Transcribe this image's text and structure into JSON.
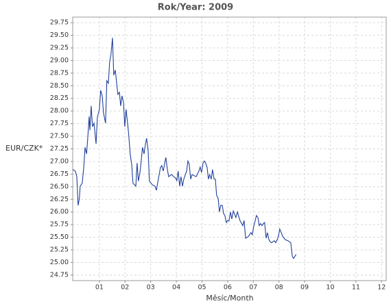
{
  "chart_data": {
    "type": "line",
    "title": "Rok/Year: 2009",
    "x_label": "Měsíc/Month",
    "y_label": "EUR/CZK*",
    "color": "#1f3f9a",
    "grid": true,
    "xlim": [
      -0.04,
      12.18
    ],
    "ylim": [
      24.64,
      29.86
    ],
    "xticks": [
      {
        "value": 1,
        "label": "01"
      },
      {
        "value": 2,
        "label": "02"
      },
      {
        "value": 3,
        "label": "03"
      },
      {
        "value": 4,
        "label": "04"
      },
      {
        "value": 5,
        "label": "05"
      },
      {
        "value": 6,
        "label": "06"
      },
      {
        "value": 7,
        "label": "07"
      },
      {
        "value": 8,
        "label": "08"
      },
      {
        "value": 9,
        "label": "09"
      },
      {
        "value": 10,
        "label": "10"
      },
      {
        "value": 11,
        "label": "11"
      },
      {
        "value": 12,
        "label": "12"
      }
    ],
    "yticks": [
      24.75,
      {
        "value": 25,
        "label": "25.00"
      },
      25.25,
      {
        "value": 25.5,
        "label": "25.50"
      },
      25.75,
      {
        "value": 26,
        "label": "26.00"
      },
      26.25,
      {
        "value": 26.5,
        "label": "26.50"
      },
      26.75,
      {
        "value": 27,
        "label": "27.00"
      },
      27.25,
      {
        "value": 27.5,
        "label": "27.50"
      },
      27.75,
      {
        "value": 28,
        "label": "28.00"
      },
      28.25,
      {
        "value": 28.5,
        "label": "28.50"
      },
      28.75,
      {
        "value": 29,
        "label": "29.00"
      },
      29.25,
      {
        "value": 29.5,
        "label": "29.50"
      },
      29.75
    ],
    "x": [
      -0.04,
      0.06,
      0.12,
      0.17,
      0.22,
      0.25,
      0.33,
      0.39,
      0.44,
      0.5,
      0.55,
      0.6,
      0.63,
      0.68,
      0.73,
      0.79,
      0.87,
      0.92,
      1.0,
      1.05,
      1.11,
      1.16,
      1.24,
      1.29,
      1.35,
      1.4,
      1.45,
      1.51,
      1.56,
      1.62,
      1.67,
      1.72,
      1.78,
      1.83,
      1.88,
      1.94,
      1.99,
      2.04,
      2.1,
      2.15,
      2.2,
      2.26,
      2.31,
      2.42,
      2.47,
      2.52,
      2.58,
      2.63,
      2.68,
      2.74,
      2.79,
      2.84,
      2.9,
      2.95,
      3.06,
      3.17,
      3.22,
      3.27,
      3.38,
      3.43,
      3.49,
      3.54,
      3.59,
      3.65,
      3.7,
      3.81,
      3.97,
      4.02,
      4.07,
      4.13,
      4.18,
      4.24,
      4.29,
      4.4,
      4.45,
      4.5,
      4.56,
      4.61,
      4.77,
      4.88,
      4.93,
      4.98,
      5.04,
      5.09,
      5.14,
      5.2,
      5.25,
      5.3,
      5.36,
      5.41,
      5.47,
      5.52,
      5.57,
      5.63,
      5.68,
      5.73,
      5.79,
      5.84,
      5.89,
      5.95,
      6.0,
      6.05,
      6.11,
      6.16,
      6.22,
      6.32,
      6.38,
      6.48,
      6.59,
      6.64,
      6.7,
      6.8,
      6.91,
      6.96,
      7.02,
      7.07,
      7.12,
      7.18,
      7.23,
      7.28,
      7.34,
      7.39,
      7.44,
      7.5,
      7.55,
      7.61,
      7.66,
      7.71,
      7.82,
      7.87,
      7.93,
      7.98,
      8.03,
      8.09,
      8.14,
      8.25,
      8.35,
      8.46,
      8.52,
      8.57,
      8.62,
      8.67
    ],
    "values": [
      26.84,
      26.81,
      26.7,
      26.13,
      26.27,
      26.51,
      26.57,
      26.88,
      27.28,
      27.15,
      27.49,
      27.89,
      27.62,
      28.1,
      27.69,
      27.76,
      27.35,
      27.87,
      28.03,
      28.41,
      28.3,
      27.96,
      27.76,
      28.6,
      28.55,
      28.98,
      29.11,
      29.45,
      28.71,
      28.81,
      28.57,
      28.33,
      28.37,
      28.1,
      28.3,
      28.17,
      27.69,
      28.03,
      27.76,
      27.49,
      27.15,
      26.94,
      26.57,
      26.51,
      26.97,
      26.61,
      26.78,
      27.01,
      27.28,
      27.15,
      27.33,
      27.46,
      27.22,
      26.61,
      26.54,
      26.51,
      26.43,
      26.57,
      26.88,
      26.92,
      26.81,
      26.95,
      27.08,
      26.84,
      26.7,
      26.74,
      26.67,
      26.62,
      26.81,
      26.51,
      26.7,
      26.51,
      26.65,
      26.81,
      27.01,
      26.95,
      26.65,
      26.74,
      26.7,
      26.81,
      26.89,
      26.78,
      26.97,
      27.01,
      26.97,
      26.88,
      26.65,
      26.74,
      26.65,
      26.84,
      26.65,
      26.65,
      26.33,
      26.27,
      26.0,
      26.13,
      26.13,
      25.97,
      25.93,
      25.79,
      25.83,
      25.82,
      26.0,
      25.86,
      26.02,
      25.89,
      26.0,
      25.83,
      25.73,
      25.83,
      25.48,
      25.51,
      25.59,
      25.55,
      25.73,
      25.82,
      25.93,
      25.89,
      25.73,
      25.77,
      25.73,
      25.77,
      25.79,
      25.48,
      25.59,
      25.45,
      25.41,
      25.39,
      25.43,
      25.39,
      25.45,
      25.52,
      25.66,
      25.59,
      25.52,
      25.45,
      25.43,
      25.39,
      25.12,
      25.08,
      25.12,
      25.16
    ]
  }
}
